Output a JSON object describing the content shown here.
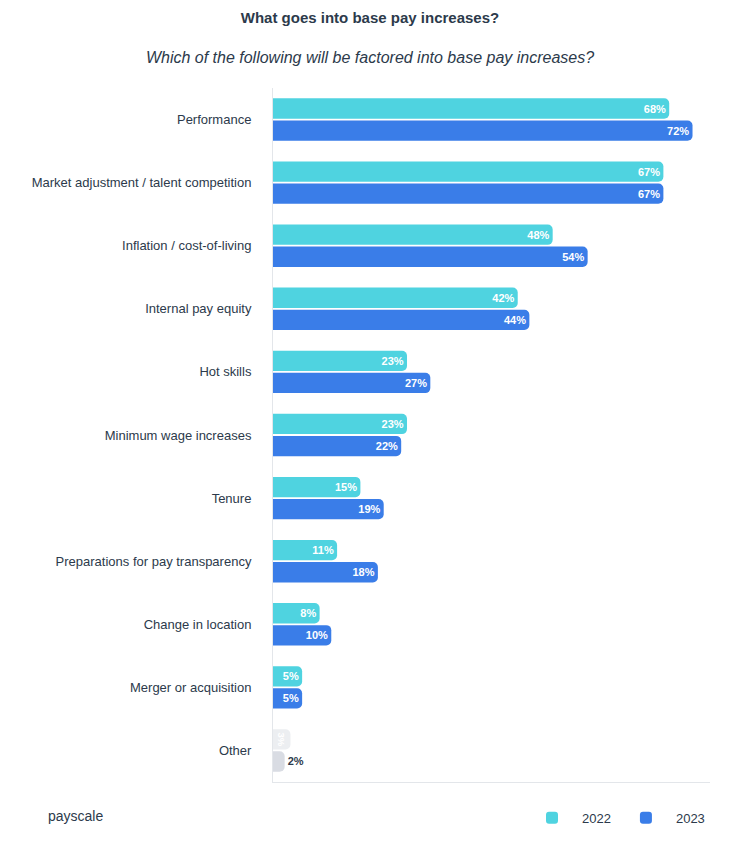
{
  "chart_data": {
    "type": "bar",
    "orientation": "horizontal",
    "title": "What goes into base pay increases?",
    "subtitle": "Which of the following will be factored into base pay increases?",
    "categories": [
      "Performance",
      "Market adjustment / talent competition",
      "Inflation / cost-of-living",
      "Internal pay equity",
      "Hot skills",
      "Minimum wage increases",
      "Tenure",
      "Preparations for pay transparency",
      "Change in location",
      "Merger or acquisition",
      "Other"
    ],
    "series": [
      {
        "name": "2022",
        "colors": [
          "#4fd3e0",
          "#4fd3e0",
          "#4fd3e0",
          "#4fd3e0",
          "#4fd3e0",
          "#4fd3e0",
          "#4fd3e0",
          "#4fd3e0",
          "#4fd3e0",
          "#4fd3e0",
          "#eceef1"
        ],
        "values": [
          68,
          67,
          48,
          42,
          23,
          23,
          15,
          11,
          8,
          5,
          3
        ],
        "value_labels": [
          "68%",
          "67%",
          "48%",
          "42%",
          "23%",
          "23%",
          "15%",
          "11%",
          "8%",
          "5%",
          "3%"
        ]
      },
      {
        "name": "2023",
        "colors": [
          "#3a7de8",
          "#3a7de8",
          "#3a7de8",
          "#3a7de8",
          "#3a7de8",
          "#3a7de8",
          "#3a7de8",
          "#3a7de8",
          "#3a7de8",
          "#3a7de8",
          "#d9dce3"
        ],
        "values": [
          72,
          67,
          54,
          44,
          27,
          22,
          19,
          18,
          10,
          5,
          2
        ],
        "value_labels": [
          "72%",
          "67%",
          "54%",
          "44%",
          "27%",
          "22%",
          "19%",
          "18%",
          "10%",
          "5%",
          "2%"
        ]
      }
    ],
    "xlim": [
      0,
      75
    ],
    "tick_labels": "y",
    "grid": false,
    "data_labels": true,
    "legend": "bottom right",
    "annotations": [
      "payscale"
    ]
  }
}
